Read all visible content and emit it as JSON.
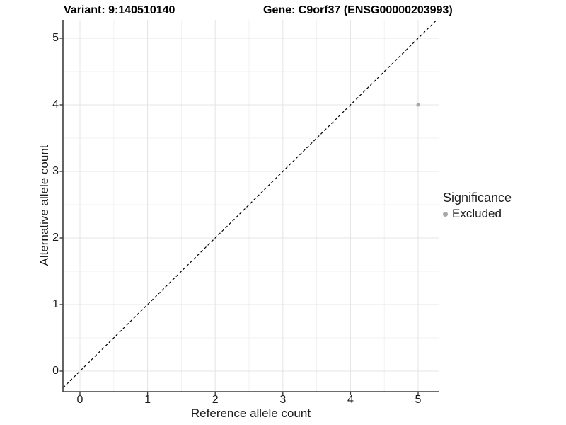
{
  "chart_data": {
    "type": "scatter",
    "title_left": "Variant: 9:140510140",
    "title_right": "Gene: C9orf37 (ENSG00000203993)",
    "xlabel": "Reference allele count",
    "ylabel": "Alternative allele count",
    "x_ticks": [
      0,
      1,
      2,
      3,
      4,
      5
    ],
    "y_ticks": [
      0,
      1,
      2,
      3,
      4,
      5
    ],
    "xlim": [
      -0.25,
      5.3
    ],
    "ylim": [
      -0.31,
      5.28
    ],
    "grid": "major and minor gridlines, light gray on white panel",
    "series": [
      {
        "name": "Excluded",
        "color": "#a8a8a8",
        "points": [
          {
            "x": 5,
            "y": 4
          }
        ]
      }
    ],
    "reference_line": {
      "kind": "identity y = x",
      "style": "dashed",
      "color": "#000000"
    },
    "legend": {
      "title": "Significance",
      "position": "right",
      "entries": [
        {
          "label": "Excluded",
          "color": "#a8a8a8"
        }
      ]
    },
    "colors": {
      "axis_line": "#3d3d3d",
      "major_grid": "#e4e4e4",
      "minor_grid": "#f2f2f2",
      "tick_text": "#1a1a1a"
    }
  }
}
